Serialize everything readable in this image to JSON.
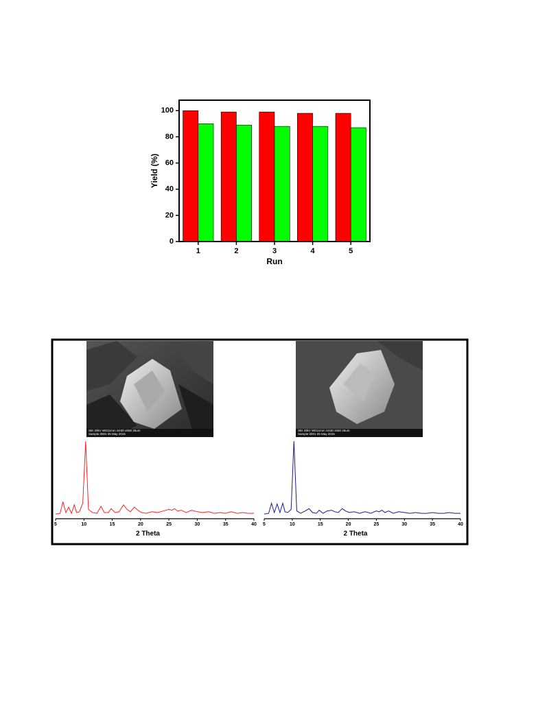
{
  "chart_data": [
    {
      "type": "bar",
      "ylabel": "Yield (%)",
      "xlabel": "Run",
      "categories": [
        "1",
        "2",
        "3",
        "4",
        "5"
      ],
      "series": [
        {
          "color": "#ff0000",
          "values": [
            100,
            99,
            99,
            98,
            98
          ]
        },
        {
          "color": "#00ff00",
          "values": [
            90,
            89,
            88,
            88,
            87
          ]
        }
      ],
      "ylim": [
        0,
        108
      ],
      "yticks": [
        0,
        20,
        40,
        60,
        80,
        100
      ]
    },
    {
      "type": "line",
      "xlabel": "2 Theta",
      "color": "#ff2020",
      "x": [
        5,
        5.8,
        6.3,
        6.8,
        7.3,
        7.8,
        8.3,
        8.7,
        9.2,
        9.8,
        10.3,
        10.8,
        11.5,
        12.3,
        13,
        13.6,
        14.3,
        14.8,
        15.5,
        16.2,
        17,
        17.6,
        18.2,
        18.9,
        19.5,
        20.2,
        21,
        22,
        23,
        24,
        25,
        25.5,
        26,
        26.5,
        27.2,
        28,
        29,
        30,
        31,
        32,
        33,
        34,
        35,
        36,
        37,
        38,
        39,
        40
      ],
      "values": [
        6,
        7,
        22,
        8,
        15,
        7,
        18,
        8,
        9,
        20,
        100,
        12,
        8,
        7,
        16,
        8,
        8,
        13,
        8,
        9,
        18,
        12,
        9,
        15,
        11,
        8,
        7,
        9,
        8,
        10,
        12,
        11,
        13,
        10,
        11,
        8,
        11,
        9,
        8,
        9,
        7,
        8,
        7,
        9,
        7,
        8,
        7,
        7
      ],
      "xlim": [
        5,
        40
      ],
      "xticks": [
        5,
        10,
        15,
        20,
        25,
        30,
        35,
        40
      ],
      "ylim": [
        0,
        100
      ]
    },
    {
      "type": "line",
      "xlabel": "2 Theta",
      "color": "#1a1a8c",
      "x": [
        5,
        5.8,
        6.3,
        6.8,
        7.3,
        7.8,
        8.3,
        8.7,
        9.2,
        9.8,
        10.3,
        10.8,
        11.5,
        12.3,
        13,
        13.6,
        14.3,
        14.8,
        15.5,
        16.2,
        17,
        17.6,
        18.2,
        18.9,
        19.5,
        20.2,
        21,
        22,
        23,
        24,
        25,
        25.5,
        26,
        26.5,
        27.2,
        28,
        29,
        30,
        31,
        32,
        33,
        34,
        35,
        36,
        37,
        38,
        39,
        40
      ],
      "values": [
        6,
        7,
        20,
        8,
        19,
        8,
        20,
        9,
        8,
        12,
        100,
        10,
        7,
        10,
        13,
        8,
        7,
        11,
        7,
        10,
        11,
        9,
        8,
        13,
        10,
        8,
        9,
        7,
        9,
        7,
        10,
        9,
        11,
        8,
        10,
        7,
        9,
        8,
        7,
        8,
        7,
        7,
        8,
        7,
        7,
        8,
        7,
        7
      ],
      "xlim": [
        5,
        40
      ],
      "xticks": [
        5,
        10,
        15,
        20,
        25,
        30,
        35,
        40
      ],
      "ylim": [
        0,
        100
      ]
    }
  ],
  "sem_images": [
    {
      "info_top": "SEI 20kV WD11mm SS30 x550 25um",
      "info_bottom": "Sample 0001 05 May 2015"
    },
    {
      "info_top": "SEI 20kV WD11mm SS30 x550 25um",
      "info_bottom": "Sample 0001 05 May 2015"
    }
  ]
}
